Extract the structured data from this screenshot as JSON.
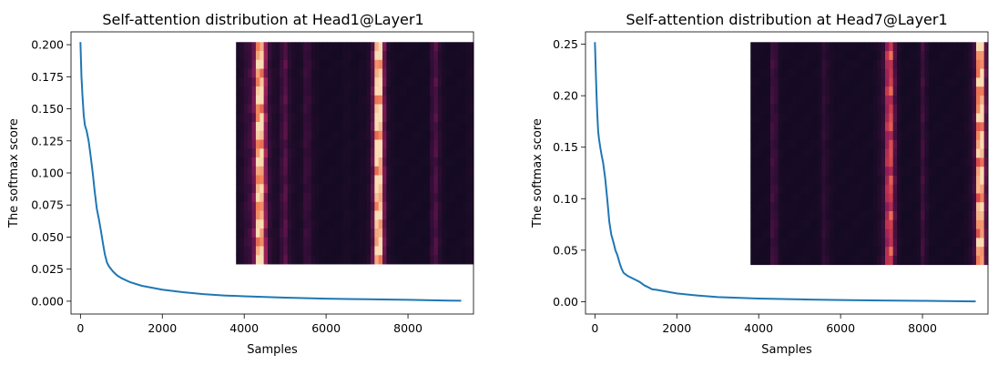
{
  "chart_data": [
    {
      "type": "line",
      "title": "Self-attention distribution at Head1@Layer1",
      "xlabel": "Samples",
      "ylabel": "The softmax score",
      "xlim": [
        -230,
        9600
      ],
      "ylim": [
        -0.01,
        0.21
      ],
      "xticks": [
        0,
        2000,
        4000,
        6000,
        8000
      ],
      "xtick_labels": [
        "0",
        "2000",
        "4000",
        "6000",
        "8000"
      ],
      "yticks": [
        0.0,
        0.025,
        0.05,
        0.075,
        0.1,
        0.125,
        0.15,
        0.175,
        0.2
      ],
      "ytick_labels": [
        "0.000",
        "0.025",
        "0.050",
        "0.075",
        "0.100",
        "0.125",
        "0.150",
        "0.175",
        "0.200"
      ],
      "grid": false,
      "line_color": "#1f77b4",
      "series": [
        {
          "x": [
            0,
            25,
            50,
            80,
            110,
            150,
            200,
            250,
            300,
            350,
            400,
            450,
            500,
            550,
            600,
            650,
            700,
            800,
            900,
            1000,
            1200,
            1500,
            2000,
            2500,
            3000,
            3500,
            4000,
            5000,
            6000,
            7000,
            8000,
            9000,
            9300
          ],
          "y": [
            0.202,
            0.175,
            0.16,
            0.145,
            0.137,
            0.133,
            0.125,
            0.113,
            0.1,
            0.085,
            0.072,
            0.064,
            0.055,
            0.045,
            0.036,
            0.03,
            0.027,
            0.023,
            0.02,
            0.018,
            0.015,
            0.012,
            0.009,
            0.007,
            0.0055,
            0.0045,
            0.0038,
            0.0028,
            0.002,
            0.0015,
            0.0011,
            0.0005,
            0.0004
          ]
        }
      ],
      "inset": {
        "type": "heatmap",
        "colormap": "rocket",
        "x_range": [
          3800,
          9600
        ],
        "y_range": [
          0.029,
          0.202
        ],
        "rows": 25,
        "columns": 60,
        "column_intensity": [
          0.08,
          0.12,
          0.2,
          0.25,
          0.42,
          0.93,
          0.95,
          0.5,
          0.2,
          0.12,
          0.1,
          0.22,
          0.32,
          0.15,
          0.1,
          0.08,
          0.1,
          0.22,
          0.2,
          0.1,
          0.08,
          0.06,
          0.06,
          0.06,
          0.06,
          0.06,
          0.06,
          0.08,
          0.08,
          0.06,
          0.06,
          0.08,
          0.08,
          0.12,
          0.35,
          0.97,
          0.98,
          0.4,
          0.12,
          0.08,
          0.06,
          0.06,
          0.06,
          0.06,
          0.06,
          0.06,
          0.06,
          0.06,
          0.06,
          0.2,
          0.3,
          0.15,
          0.08,
          0.06,
          0.06,
          0.06,
          0.06,
          0.06,
          0.08,
          0.1
        ]
      }
    },
    {
      "type": "line",
      "title": "Self-attention distribution at Head7@Layer1",
      "xlabel": "Samples",
      "ylabel": "The softmax score",
      "xlim": [
        -230,
        9600
      ],
      "ylim": [
        -0.012,
        0.262
      ],
      "xticks": [
        0,
        2000,
        4000,
        6000,
        8000
      ],
      "xtick_labels": [
        "0",
        "2000",
        "4000",
        "6000",
        "8000"
      ],
      "yticks": [
        0.0,
        0.05,
        0.1,
        0.15,
        0.2,
        0.25
      ],
      "ytick_labels": [
        "0.00",
        "0.05",
        "0.10",
        "0.15",
        "0.20",
        "0.25"
      ],
      "grid": false,
      "line_color": "#1f77b4",
      "series": [
        {
          "x": [
            0,
            20,
            40,
            60,
            80,
            100,
            130,
            160,
            200,
            250,
            300,
            350,
            400,
            450,
            500,
            550,
            600,
            650,
            700,
            800,
            900,
            1000,
            1100,
            1200,
            1300,
            1400,
            1500,
            2000,
            2500,
            3000,
            4000,
            5000,
            6000,
            7000,
            8000,
            9000,
            9300
          ],
          "y": [
            0.252,
            0.225,
            0.2,
            0.18,
            0.165,
            0.158,
            0.15,
            0.143,
            0.135,
            0.12,
            0.1,
            0.078,
            0.065,
            0.058,
            0.05,
            0.045,
            0.038,
            0.032,
            0.028,
            0.025,
            0.023,
            0.021,
            0.019,
            0.016,
            0.014,
            0.012,
            0.0115,
            0.008,
            0.006,
            0.0045,
            0.003,
            0.0022,
            0.0016,
            0.0012,
            0.0008,
            0.0004,
            0.0003
          ]
        }
      ],
      "inset": {
        "type": "heatmap",
        "colormap": "rocket",
        "x_range": [
          3800,
          9600
        ],
        "y_range": [
          0.036,
          0.252
        ],
        "rows": 25,
        "columns": 60,
        "column_intensity": [
          0.06,
          0.06,
          0.06,
          0.06,
          0.06,
          0.25,
          0.2,
          0.08,
          0.06,
          0.06,
          0.06,
          0.06,
          0.06,
          0.06,
          0.06,
          0.06,
          0.06,
          0.08,
          0.18,
          0.12,
          0.08,
          0.06,
          0.06,
          0.06,
          0.06,
          0.06,
          0.06,
          0.06,
          0.06,
          0.06,
          0.06,
          0.08,
          0.12,
          0.2,
          0.58,
          0.7,
          0.3,
          0.1,
          0.06,
          0.06,
          0.06,
          0.06,
          0.08,
          0.25,
          0.12,
          0.06,
          0.06,
          0.06,
          0.06,
          0.06,
          0.06,
          0.06,
          0.06,
          0.06,
          0.08,
          0.12,
          0.25,
          0.88,
          0.95,
          0.35
        ]
      }
    }
  ]
}
